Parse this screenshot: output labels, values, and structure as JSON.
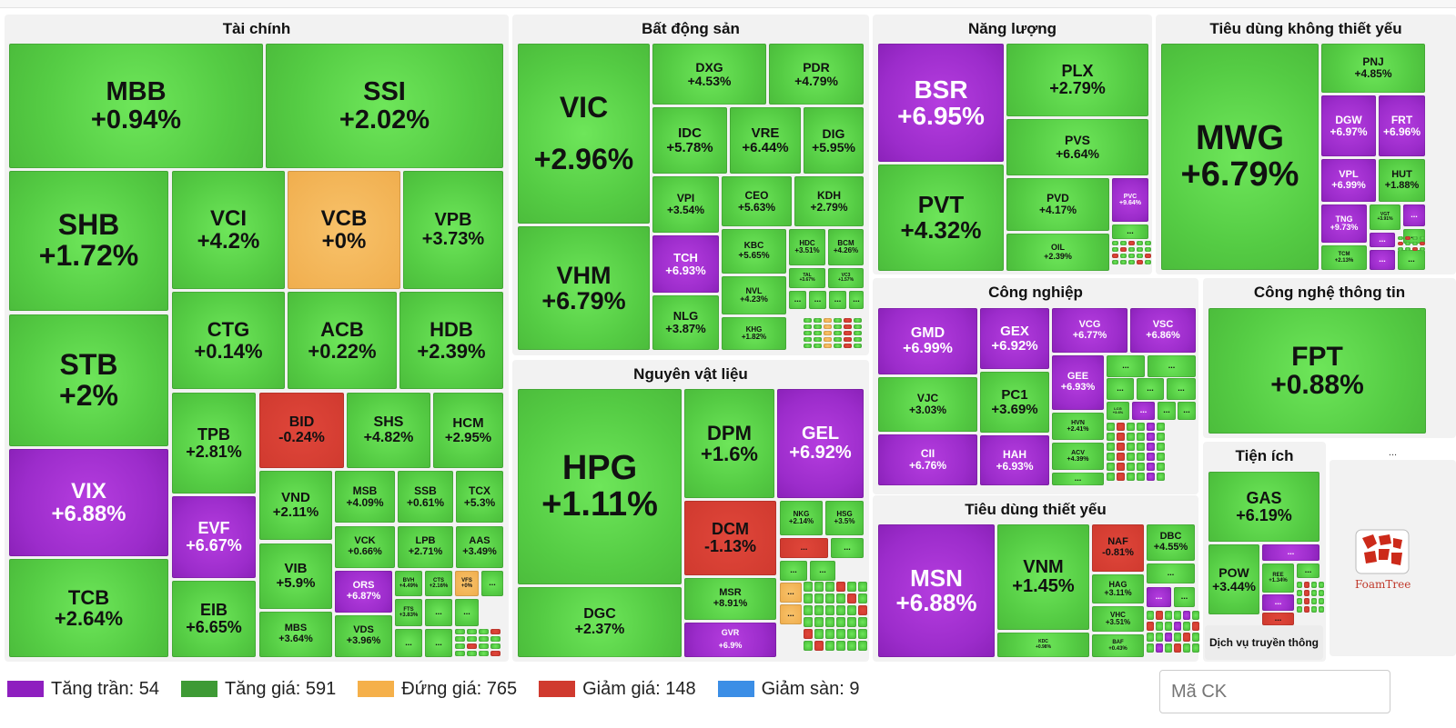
{
  "colors": {
    "ceiling": "#9c2ccb",
    "up": "#55cc44",
    "flat": "#f0ae4e",
    "down": "#d03a2f",
    "floor": "#3b8ee6"
  },
  "sectors": {
    "tai_chinh": "Tài chính",
    "bat_dong_san": "Bất động sản",
    "nang_luong": "Năng lượng",
    "tieu_dung_khong_thiet_yeu": "Tiêu dùng không thiết yếu",
    "nguyen_vat_lieu": "Nguyên vật liệu",
    "cong_nghiep": "Công nghiệp",
    "cong_nghe_thong_tin": "Công nghệ thông tin",
    "tieu_dung_thiet_yeu": "Tiêu dùng thiết yếu",
    "tien_ich": "Tiện ích",
    "dich_vu_truyen_thong": "Dịch vụ truyền thông"
  },
  "overflow": "...",
  "foamtree_label": "FoamTree",
  "tiles": [
    {
      "sym": "MBB",
      "pct": "+0.94%"
    },
    {
      "sym": "SSI",
      "pct": "+2.02%"
    },
    {
      "sym": "SHB",
      "pct": "+1.72%"
    },
    {
      "sym": "VCI",
      "pct": "+4.2%"
    },
    {
      "sym": "VCB",
      "pct": "+0%"
    },
    {
      "sym": "VPB",
      "pct": "+3.73%"
    },
    {
      "sym": "STB",
      "pct": "+2%"
    },
    {
      "sym": "CTG",
      "pct": "+0.14%"
    },
    {
      "sym": "ACB",
      "pct": "+0.22%"
    },
    {
      "sym": "HDB",
      "pct": "+2.39%"
    },
    {
      "sym": "VIX",
      "pct": "+6.88%"
    },
    {
      "sym": "TPB",
      "pct": "+2.81%"
    },
    {
      "sym": "BID",
      "pct": "-0.24%"
    },
    {
      "sym": "SHS",
      "pct": "+4.82%"
    },
    {
      "sym": "HCM",
      "pct": "+2.95%"
    },
    {
      "sym": "EVF",
      "pct": "+6.67%"
    },
    {
      "sym": "VND",
      "pct": "+2.11%"
    },
    {
      "sym": "MSB",
      "pct": "+4.09%"
    },
    {
      "sym": "SSB",
      "pct": "+0.61%"
    },
    {
      "sym": "TCX",
      "pct": "+5.3%"
    },
    {
      "sym": "TCB",
      "pct": "+2.64%"
    },
    {
      "sym": "VIB",
      "pct": "+5.9%"
    },
    {
      "sym": "VCK",
      "pct": "+0.66%"
    },
    {
      "sym": "LPB",
      "pct": "+2.71%"
    },
    {
      "sym": "AAS",
      "pct": "+3.49%"
    },
    {
      "sym": "EIB",
      "pct": "+6.65%"
    },
    {
      "sym": "ORS",
      "pct": "+6.87%"
    },
    {
      "sym": "MBS",
      "pct": "+3.64%"
    },
    {
      "sym": "VDS",
      "pct": "+3.96%"
    },
    {
      "sym": "BVH",
      "pct": "+4.49%"
    },
    {
      "sym": "CTS",
      "pct": "+2.16%"
    },
    {
      "sym": "VFS",
      "pct": "+0%"
    },
    {
      "sym": "FTS",
      "pct": "+3.83%"
    },
    {
      "sym": "VIC",
      "pct": "+2.96%"
    },
    {
      "sym": "DXG",
      "pct": "+4.53%"
    },
    {
      "sym": "PDR",
      "pct": "+4.79%"
    },
    {
      "sym": "IDC",
      "pct": "+5.78%"
    },
    {
      "sym": "VRE",
      "pct": "+6.44%"
    },
    {
      "sym": "DIG",
      "pct": "+5.95%"
    },
    {
      "sym": "VPI",
      "pct": "+3.54%"
    },
    {
      "sym": "CEO",
      "pct": "+5.63%"
    },
    {
      "sym": "KDH",
      "pct": "+2.79%"
    },
    {
      "sym": "VHM",
      "pct": "+6.79%"
    },
    {
      "sym": "TCH",
      "pct": "+6.93%"
    },
    {
      "sym": "KBC",
      "pct": "+5.65%"
    },
    {
      "sym": "HDC",
      "pct": "+3.51%"
    },
    {
      "sym": "BCM",
      "pct": "+4.26%"
    },
    {
      "sym": "NVL",
      "pct": "+4.23%"
    },
    {
      "sym": "TAL",
      "pct": "+3.67%"
    },
    {
      "sym": "VC3",
      "pct": "+1.57%"
    },
    {
      "sym": "NLG",
      "pct": "+3.87%"
    },
    {
      "sym": "KHG",
      "pct": "+1.82%"
    },
    {
      "sym": "BSR",
      "pct": "+6.95%"
    },
    {
      "sym": "PLX",
      "pct": "+2.79%"
    },
    {
      "sym": "PVS",
      "pct": "+6.64%"
    },
    {
      "sym": "PVT",
      "pct": "+4.32%"
    },
    {
      "sym": "PVD",
      "pct": "+4.17%"
    },
    {
      "sym": "PVC",
      "pct": "+9.64%"
    },
    {
      "sym": "OIL",
      "pct": "+2.39%"
    },
    {
      "sym": "MWG",
      "pct": "+6.79%"
    },
    {
      "sym": "PNJ",
      "pct": "+4.85%"
    },
    {
      "sym": "DGW",
      "pct": "+6.97%"
    },
    {
      "sym": "FRT",
      "pct": "+6.96%"
    },
    {
      "sym": "VPL",
      "pct": "+6.99%"
    },
    {
      "sym": "HUT",
      "pct": "+1.88%"
    },
    {
      "sym": "TNG",
      "pct": "+9.73%"
    },
    {
      "sym": "VGT",
      "pct": "+3.91%"
    },
    {
      "sym": "TCM",
      "pct": "+2.13%"
    },
    {
      "sym": "HPG",
      "pct": "+1.11%"
    },
    {
      "sym": "DPM",
      "pct": "+1.6%"
    },
    {
      "sym": "GEL",
      "pct": "+6.92%"
    },
    {
      "sym": "DCM",
      "pct": "-1.13%"
    },
    {
      "sym": "NKG",
      "pct": "+2.14%"
    },
    {
      "sym": "HSG",
      "pct": "+3.5%"
    },
    {
      "sym": "DGC",
      "pct": "+2.37%"
    },
    {
      "sym": "MSR",
      "pct": "+8.91%"
    },
    {
      "sym": "GVR",
      "pct": "+6.9%"
    },
    {
      "sym": "GMD",
      "pct": "+6.99%"
    },
    {
      "sym": "GEX",
      "pct": "+6.92%"
    },
    {
      "sym": "VCG",
      "pct": "+6.77%"
    },
    {
      "sym": "VSC",
      "pct": "+6.86%"
    },
    {
      "sym": "GEE",
      "pct": "+6.93%"
    },
    {
      "sym": "VJC",
      "pct": "+3.03%"
    },
    {
      "sym": "PC1",
      "pct": "+3.69%"
    },
    {
      "sym": "LCG",
      "pct": "+3.6%"
    },
    {
      "sym": "HVN",
      "pct": "+2.41%"
    },
    {
      "sym": "CII",
      "pct": "+6.76%"
    },
    {
      "sym": "HAH",
      "pct": "+6.93%"
    },
    {
      "sym": "ACV",
      "pct": "+4.39%"
    },
    {
      "sym": "FPT",
      "pct": "+0.88%"
    },
    {
      "sym": "MSN",
      "pct": "+6.88%"
    },
    {
      "sym": "VNM",
      "pct": "+1.45%"
    },
    {
      "sym": "NAF",
      "pct": "-0.81%"
    },
    {
      "sym": "DBC",
      "pct": "+4.55%"
    },
    {
      "sym": "HAG",
      "pct": "+3.11%"
    },
    {
      "sym": "VHC",
      "pct": "+3.51%"
    },
    {
      "sym": "KDC",
      "pct": "+0.98%"
    },
    {
      "sym": "BAF",
      "pct": "+0.43%"
    },
    {
      "sym": "GAS",
      "pct": "+6.19%"
    },
    {
      "sym": "POW",
      "pct": "+3.44%"
    },
    {
      "sym": "REE",
      "pct": "+1.34%"
    }
  ],
  "legend": [
    {
      "label": "Tăng trần: 54",
      "color": "#8e1fbf"
    },
    {
      "label": "Tăng giá: 591",
      "color": "#3e9a35"
    },
    {
      "label": "Đứng giá: 765",
      "color": "#f5b04a"
    },
    {
      "label": "Giảm giá: 148",
      "color": "#d03a2f"
    },
    {
      "label": "Giảm sàn: 9",
      "color": "#3b8ee6"
    }
  ],
  "search": {
    "placeholder": "Mã CK"
  }
}
